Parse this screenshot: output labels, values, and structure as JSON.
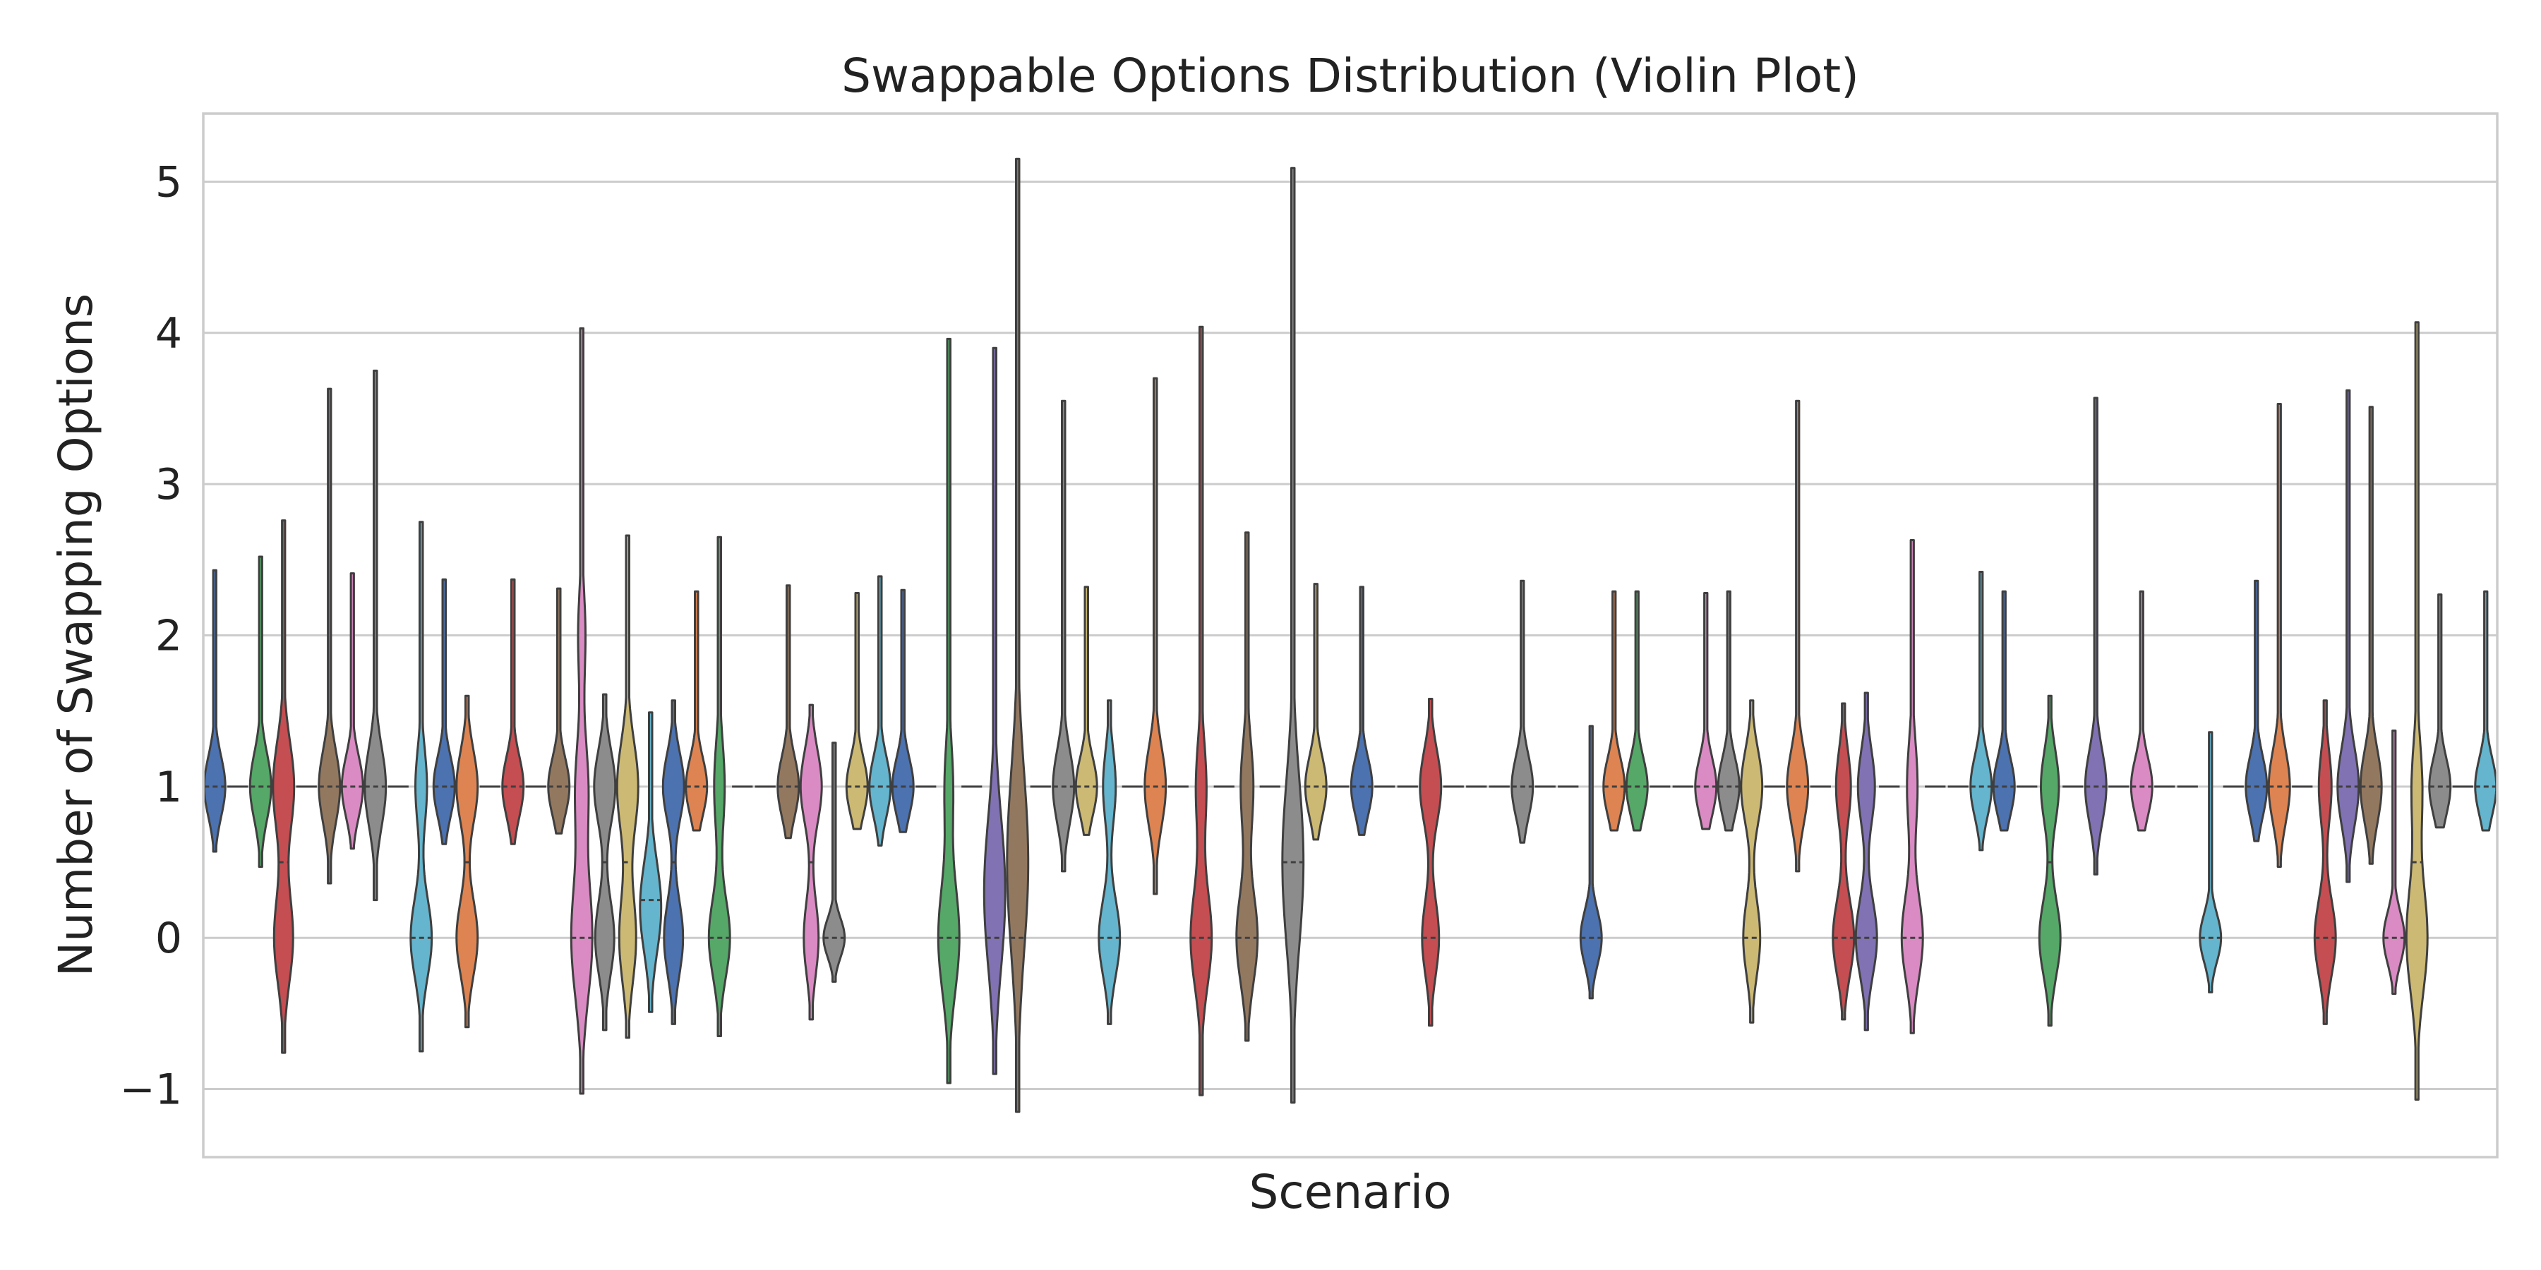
{
  "chart_data": {
    "type": "violin",
    "title": "Swappable Options Distribution (Violin Plot)",
    "xlabel": "Scenario",
    "ylabel": "Number of Swapping Options",
    "ylim": [
      -1.45,
      5.45
    ],
    "yticks": [
      {
        "value": -1,
        "label": "−1"
      },
      {
        "value": 0,
        "label": "0"
      },
      {
        "value": 1,
        "label": "1"
      },
      {
        "value": 2,
        "label": "2"
      },
      {
        "value": 3,
        "label": "3"
      },
      {
        "value": 4,
        "label": "4"
      },
      {
        "value": 5,
        "label": "5"
      }
    ],
    "grid": "horizontal",
    "legend": "none",
    "category_count": 100,
    "flat_value": 1,
    "palette": {
      "blue": "#4c72b0",
      "orange": "#dd8452",
      "green": "#55a868",
      "red": "#c44e52",
      "purple": "#8172b3",
      "brown": "#937860",
      "pink": "#da8bc3",
      "gray": "#8c8c8c",
      "olive": "#ccb974",
      "cyan": "#64b5cd"
    },
    "violins": [
      {
        "pos": 0,
        "color": "blue",
        "min": 0.57,
        "max": 2.43,
        "modes": [
          [
            1,
            0.2,
            1
          ]
        ],
        "median": 1
      },
      {
        "pos": 2,
        "color": "green",
        "min": 0.47,
        "max": 2.52,
        "modes": [
          [
            1,
            0.22,
            1
          ]
        ],
        "median": 1
      },
      {
        "pos": 3,
        "color": "red",
        "min": -0.76,
        "max": 2.76,
        "modes": [
          [
            1,
            0.3,
            1
          ],
          [
            0,
            0.3,
            0.9
          ]
        ],
        "median": 0.5
      },
      {
        "pos": 5,
        "color": "brown",
        "min": 0.36,
        "max": 3.63,
        "modes": [
          [
            1,
            0.24,
            1
          ]
        ],
        "median": 1
      },
      {
        "pos": 6,
        "color": "pink",
        "min": 0.59,
        "max": 2.41,
        "modes": [
          [
            1,
            0.2,
            1
          ]
        ],
        "median": 1
      },
      {
        "pos": 7,
        "color": "gray",
        "min": 0.25,
        "max": 3.75,
        "modes": [
          [
            1,
            0.26,
            1
          ]
        ],
        "median": 1
      },
      {
        "pos": 9,
        "color": "cyan",
        "min": -0.75,
        "max": 2.75,
        "modes": [
          [
            0,
            0.26,
            1
          ],
          [
            1,
            0.25,
            0.55
          ]
        ],
        "median": 0
      },
      {
        "pos": 10,
        "color": "blue",
        "min": 0.62,
        "max": 2.37,
        "modes": [
          [
            1,
            0.2,
            1
          ]
        ],
        "median": 1
      },
      {
        "pos": 11,
        "color": "orange",
        "min": -0.59,
        "max": 1.6,
        "modes": [
          [
            1,
            0.24,
            1
          ],
          [
            0,
            0.25,
            1
          ]
        ],
        "median": 0.5
      },
      {
        "pos": 13,
        "color": "red",
        "min": 0.62,
        "max": 2.37,
        "modes": [
          [
            1,
            0.2,
            1
          ]
        ],
        "median": 1
      },
      {
        "pos": 15,
        "color": "brown",
        "min": 0.69,
        "max": 2.31,
        "modes": [
          [
            1,
            0.19,
            1
          ]
        ],
        "median": 1
      },
      {
        "pos": 16,
        "color": "pink",
        "min": -1.03,
        "max": 4.03,
        "modes": [
          [
            0,
            0.4,
            1
          ],
          [
            1,
            0.32,
            0.6
          ],
          [
            2,
            0.3,
            0.35
          ]
        ],
        "median": 0
      },
      {
        "pos": 17,
        "color": "gray",
        "min": -0.61,
        "max": 1.61,
        "modes": [
          [
            1,
            0.24,
            1
          ],
          [
            0,
            0.25,
            0.9
          ]
        ],
        "median": 0.5
      },
      {
        "pos": 18,
        "color": "olive",
        "min": -0.66,
        "max": 2.66,
        "modes": [
          [
            1,
            0.3,
            1
          ],
          [
            0,
            0.3,
            0.8
          ]
        ],
        "median": 0.5
      },
      {
        "pos": 19,
        "color": "cyan",
        "min": -0.49,
        "max": 1.49,
        "modes": [
          [
            0.2,
            0.3,
            1
          ]
        ],
        "median": 0.25
      },
      {
        "pos": 20,
        "color": "blue",
        "min": -0.57,
        "max": 1.57,
        "modes": [
          [
            1,
            0.22,
            1
          ],
          [
            0,
            0.25,
            0.9
          ]
        ],
        "median": 0.5
      },
      {
        "pos": 21,
        "color": "orange",
        "min": 0.71,
        "max": 2.29,
        "modes": [
          [
            1,
            0.19,
            1
          ]
        ],
        "median": 1
      },
      {
        "pos": 22,
        "color": "green",
        "min": -0.65,
        "max": 2.65,
        "modes": [
          [
            0,
            0.26,
            1
          ],
          [
            1,
            0.3,
            0.5
          ]
        ],
        "median": 0
      },
      {
        "pos": 25,
        "color": "brown",
        "min": 0.66,
        "max": 2.33,
        "modes": [
          [
            1,
            0.2,
            1
          ]
        ],
        "median": 1
      },
      {
        "pos": 26,
        "color": "pink",
        "min": -0.54,
        "max": 1.54,
        "modes": [
          [
            1,
            0.24,
            1
          ],
          [
            0,
            0.25,
            0.7
          ]
        ],
        "median": 0.5
      },
      {
        "pos": 27,
        "color": "gray",
        "min": -0.29,
        "max": 1.29,
        "modes": [
          [
            0,
            0.13,
            1
          ]
        ],
        "median": 0
      },
      {
        "pos": 28,
        "color": "olive",
        "min": 0.72,
        "max": 2.28,
        "modes": [
          [
            1,
            0.19,
            1
          ]
        ],
        "median": 1
      },
      {
        "pos": 29,
        "color": "cyan",
        "min": 0.61,
        "max": 2.39,
        "modes": [
          [
            1,
            0.2,
            1
          ]
        ],
        "median": 1
      },
      {
        "pos": 30,
        "color": "blue",
        "min": 0.7,
        "max": 2.3,
        "modes": [
          [
            1,
            0.19,
            1
          ]
        ],
        "median": 1
      },
      {
        "pos": 32,
        "color": "green",
        "min": -0.96,
        "max": 3.96,
        "modes": [
          [
            0,
            0.36,
            1
          ],
          [
            1,
            0.3,
            0.4
          ]
        ],
        "median": 0
      },
      {
        "pos": 34,
        "color": "purple",
        "min": -0.9,
        "max": 3.9,
        "modes": [
          [
            0.3,
            0.5,
            1
          ]
        ],
        "median": 0
      },
      {
        "pos": 35,
        "color": "brown",
        "min": -1.15,
        "max": 5.15,
        "modes": [
          [
            0.5,
            0.6,
            1
          ]
        ],
        "median": 0
      },
      {
        "pos": 37,
        "color": "gray",
        "min": 0.44,
        "max": 3.55,
        "modes": [
          [
            1,
            0.24,
            1
          ]
        ],
        "median": 1
      },
      {
        "pos": 38,
        "color": "olive",
        "min": 0.68,
        "max": 2.32,
        "modes": [
          [
            1,
            0.19,
            1
          ]
        ],
        "median": 1
      },
      {
        "pos": 39,
        "color": "cyan",
        "min": -0.57,
        "max": 1.57,
        "modes": [
          [
            0,
            0.25,
            1
          ],
          [
            1,
            0.24,
            0.6
          ]
        ],
        "median": 0
      },
      {
        "pos": 41,
        "color": "orange",
        "min": 0.29,
        "max": 3.7,
        "modes": [
          [
            1,
            0.26,
            1
          ]
        ],
        "median": 1
      },
      {
        "pos": 43,
        "color": "red",
        "min": -1.04,
        "max": 4.04,
        "modes": [
          [
            0,
            0.32,
            1
          ],
          [
            1,
            0.3,
            0.5
          ]
        ],
        "median": 0
      },
      {
        "pos": 45,
        "color": "brown",
        "min": -0.68,
        "max": 2.68,
        "modes": [
          [
            0,
            0.3,
            1
          ],
          [
            1,
            0.3,
            0.6
          ]
        ],
        "median": 0
      },
      {
        "pos": 47,
        "color": "gray",
        "min": -1.09,
        "max": 5.09,
        "modes": [
          [
            0.5,
            0.55,
            1
          ]
        ],
        "median": 0.5
      },
      {
        "pos": 48,
        "color": "olive",
        "min": 0.65,
        "max": 2.34,
        "modes": [
          [
            1,
            0.2,
            1
          ]
        ],
        "median": 1
      },
      {
        "pos": 50,
        "color": "blue",
        "min": 0.68,
        "max": 2.32,
        "modes": [
          [
            1,
            0.19,
            1
          ]
        ],
        "median": 1
      },
      {
        "pos": 53,
        "color": "red",
        "min": -0.58,
        "max": 1.58,
        "modes": [
          [
            1,
            0.24,
            1
          ],
          [
            0,
            0.25,
            0.8
          ]
        ],
        "median": 0
      },
      {
        "pos": 57,
        "color": "gray",
        "min": 0.63,
        "max": 2.36,
        "modes": [
          [
            1,
            0.2,
            1
          ]
        ],
        "median": 1
      },
      {
        "pos": 60,
        "color": "blue",
        "min": -0.4,
        "max": 1.4,
        "modes": [
          [
            0,
            0.18,
            1
          ]
        ],
        "median": 0
      },
      {
        "pos": 61,
        "color": "orange",
        "min": 0.71,
        "max": 2.29,
        "modes": [
          [
            1,
            0.19,
            1
          ]
        ],
        "median": 1
      },
      {
        "pos": 62,
        "color": "green",
        "min": 0.71,
        "max": 2.29,
        "modes": [
          [
            1,
            0.19,
            1
          ]
        ],
        "median": 1
      },
      {
        "pos": 65,
        "color": "pink",
        "min": 0.72,
        "max": 2.28,
        "modes": [
          [
            1,
            0.19,
            1
          ]
        ],
        "median": 1
      },
      {
        "pos": 66,
        "color": "gray",
        "min": 0.71,
        "max": 2.29,
        "modes": [
          [
            1,
            0.19,
            1
          ]
        ],
        "median": 1
      },
      {
        "pos": 67,
        "color": "olive",
        "min": -0.56,
        "max": 1.57,
        "modes": [
          [
            1,
            0.24,
            1
          ],
          [
            0,
            0.25,
            0.8
          ]
        ],
        "median": 0
      },
      {
        "pos": 69,
        "color": "orange",
        "min": 0.44,
        "max": 3.55,
        "modes": [
          [
            1,
            0.24,
            1
          ]
        ],
        "median": 1
      },
      {
        "pos": 71,
        "color": "red",
        "min": -0.54,
        "max": 1.55,
        "modes": [
          [
            0,
            0.25,
            1
          ],
          [
            1,
            0.24,
            0.7
          ]
        ],
        "median": 0
      },
      {
        "pos": 72,
        "color": "purple",
        "min": -0.61,
        "max": 1.62,
        "modes": [
          [
            0,
            0.25,
            1
          ],
          [
            1,
            0.24,
            0.8
          ]
        ],
        "median": 0
      },
      {
        "pos": 74,
        "color": "pink",
        "min": -0.63,
        "max": 2.63,
        "modes": [
          [
            0,
            0.28,
            1
          ],
          [
            1,
            0.3,
            0.5
          ]
        ],
        "median": 0
      },
      {
        "pos": 77,
        "color": "cyan",
        "min": 0.58,
        "max": 2.42,
        "modes": [
          [
            1,
            0.2,
            1
          ]
        ],
        "median": 1
      },
      {
        "pos": 78,
        "color": "blue",
        "min": 0.71,
        "max": 2.29,
        "modes": [
          [
            1,
            0.19,
            1
          ]
        ],
        "median": 1
      },
      {
        "pos": 80,
        "color": "green",
        "min": -0.58,
        "max": 1.6,
        "modes": [
          [
            0,
            0.25,
            1
          ],
          [
            1,
            0.24,
            0.85
          ]
        ],
        "median": 0.5
      },
      {
        "pos": 82,
        "color": "purple",
        "min": 0.42,
        "max": 3.57,
        "modes": [
          [
            1,
            0.24,
            1
          ]
        ],
        "median": 1
      },
      {
        "pos": 84,
        "color": "pink",
        "min": 0.71,
        "max": 2.29,
        "modes": [
          [
            1,
            0.19,
            1
          ]
        ],
        "median": 1
      },
      {
        "pos": 87,
        "color": "cyan",
        "min": -0.36,
        "max": 1.36,
        "modes": [
          [
            0,
            0.16,
            1
          ]
        ],
        "median": 0
      },
      {
        "pos": 89,
        "color": "blue",
        "min": 0.64,
        "max": 2.36,
        "modes": [
          [
            1,
            0.2,
            1
          ]
        ],
        "median": 1
      },
      {
        "pos": 90,
        "color": "orange",
        "min": 0.47,
        "max": 3.53,
        "modes": [
          [
            1,
            0.24,
            1
          ]
        ],
        "median": 1
      },
      {
        "pos": 92,
        "color": "red",
        "min": -0.57,
        "max": 1.57,
        "modes": [
          [
            0,
            0.25,
            1
          ],
          [
            1,
            0.24,
            0.6
          ]
        ],
        "median": 0
      },
      {
        "pos": 93,
        "color": "purple",
        "min": 0.37,
        "max": 3.62,
        "modes": [
          [
            1,
            0.26,
            1
          ]
        ],
        "median": 1
      },
      {
        "pos": 94,
        "color": "brown",
        "min": 0.49,
        "max": 3.51,
        "modes": [
          [
            1,
            0.24,
            1
          ]
        ],
        "median": 1
      },
      {
        "pos": 95,
        "color": "pink",
        "min": -0.37,
        "max": 1.37,
        "modes": [
          [
            0,
            0.17,
            1
          ]
        ],
        "median": 0
      },
      {
        "pos": 96,
        "color": "olive",
        "min": -1.07,
        "max": 4.07,
        "modes": [
          [
            0,
            0.36,
            1
          ],
          [
            1,
            0.3,
            0.5
          ]
        ],
        "median": 0.5
      },
      {
        "pos": 97,
        "color": "gray",
        "min": 0.73,
        "max": 2.27,
        "modes": [
          [
            1,
            0.19,
            1
          ]
        ],
        "median": 1
      },
      {
        "pos": 99,
        "color": "cyan",
        "min": 0.71,
        "max": 2.29,
        "modes": [
          [
            1,
            0.19,
            1
          ]
        ],
        "median": 1
      }
    ]
  }
}
